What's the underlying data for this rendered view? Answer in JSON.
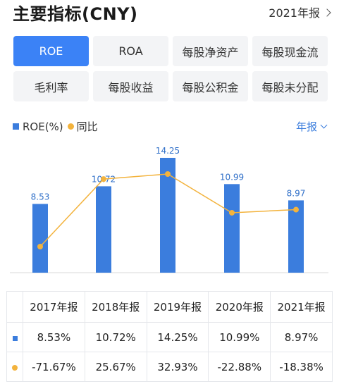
{
  "header": {
    "title": "主要指标(CNY)",
    "period_label": "2021年报"
  },
  "tabs": [
    {
      "label": "ROE",
      "active": true
    },
    {
      "label": "ROA",
      "active": false
    },
    {
      "label": "每股净资产",
      "active": false
    },
    {
      "label": "每股现金流",
      "active": false
    },
    {
      "label": "毛利率",
      "active": false
    },
    {
      "label": "每股收益",
      "active": false
    },
    {
      "label": "每股公积金",
      "active": false
    },
    {
      "label": "每股未分配",
      "active": false
    }
  ],
  "legend": {
    "bar_series": "ROE(%)",
    "line_series": "同比"
  },
  "period_select": "年报",
  "chart_data": {
    "type": "bar",
    "categories": [
      "2017年报",
      "2018年报",
      "2019年报",
      "2020年报",
      "2021年报"
    ],
    "series": [
      {
        "name": "ROE(%)",
        "type": "bar",
        "values": [
          8.53,
          10.72,
          14.25,
          10.99,
          8.97
        ],
        "color": "#3b7ddd"
      },
      {
        "name": "同比",
        "type": "line",
        "values": [
          -71.67,
          25.67,
          32.93,
          -22.88,
          -18.38
        ],
        "color": "#f3b33d"
      }
    ],
    "data_labels": [
      "8.53",
      "10.72",
      "14.25",
      "10.99",
      "8.97"
    ]
  },
  "table": {
    "headers": [
      "2017年报",
      "2018年报",
      "2019年报",
      "2020年报",
      "2021年报"
    ],
    "roe_row": [
      "8.53%",
      "10.72%",
      "14.25%",
      "10.99%",
      "8.97%"
    ],
    "yoy_row": [
      "-71.67%",
      "25.67%",
      "32.93%",
      "-22.88%",
      "-18.38%"
    ]
  },
  "colors": {
    "accent": "#3b82f6",
    "bar": "#3b7ddd",
    "line": "#f3b33d",
    "positive": "#d94040",
    "negative": "#1aa05a"
  }
}
